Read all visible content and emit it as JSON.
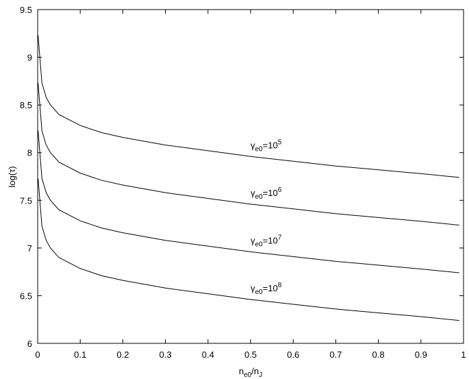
{
  "chart_data": {
    "type": "line",
    "xlabel": {
      "text1": "n",
      "sub1": "e0",
      "text2": "/n",
      "sub2": "J"
    },
    "ylabel": "log(τ)",
    "x": [
      0.001,
      0.01,
      0.02,
      0.03,
      0.05,
      0.1,
      0.15,
      0.2,
      0.3,
      0.4,
      0.5,
      0.6,
      0.7,
      0.8,
      0.9,
      0.99
    ],
    "series": [
      {
        "color": "#000000",
        "label": {
          "symbol": "γ",
          "subscript": "e0",
          "base": "=10",
          "exponent": "5"
        },
        "values": [
          9.23,
          8.73,
          8.58,
          8.5,
          8.4,
          8.285,
          8.21,
          8.16,
          8.08,
          8.02,
          7.96,
          7.91,
          7.86,
          7.82,
          7.78,
          7.74
        ]
      },
      {
        "color": "#000000",
        "label": {
          "symbol": "γ",
          "subscript": "e0",
          "base": "=10",
          "exponent": "6"
        },
        "values": [
          8.73,
          8.23,
          8.08,
          8.0,
          7.9,
          7.785,
          7.71,
          7.66,
          7.58,
          7.52,
          7.46,
          7.41,
          7.36,
          7.32,
          7.28,
          7.24
        ]
      },
      {
        "color": "#000000",
        "label": {
          "symbol": "γ",
          "subscript": "e0",
          "base": "=10",
          "exponent": "7"
        },
        "values": [
          8.23,
          7.73,
          7.58,
          7.5,
          7.4,
          7.285,
          7.21,
          7.16,
          7.08,
          7.02,
          6.96,
          6.91,
          6.86,
          6.82,
          6.78,
          6.74
        ]
      },
      {
        "color": "#000000",
        "label": {
          "symbol": "γ",
          "subscript": "e0",
          "base": "=10",
          "exponent": "8"
        },
        "values": [
          7.73,
          7.23,
          7.08,
          7.0,
          6.9,
          6.785,
          6.71,
          6.66,
          6.58,
          6.52,
          6.46,
          6.41,
          6.36,
          6.32,
          6.28,
          6.24
        ]
      }
    ],
    "xlim": [
      0,
      1
    ],
    "xticks": [
      0,
      0.1,
      0.2,
      0.3,
      0.4,
      0.5,
      0.6,
      0.7,
      0.8,
      0.9,
      1
    ],
    "ylim": [
      6,
      9.5
    ],
    "yticks": [
      6,
      6.5,
      7,
      7.5,
      8,
      8.5,
      9,
      9.5
    ],
    "grid": false
  }
}
